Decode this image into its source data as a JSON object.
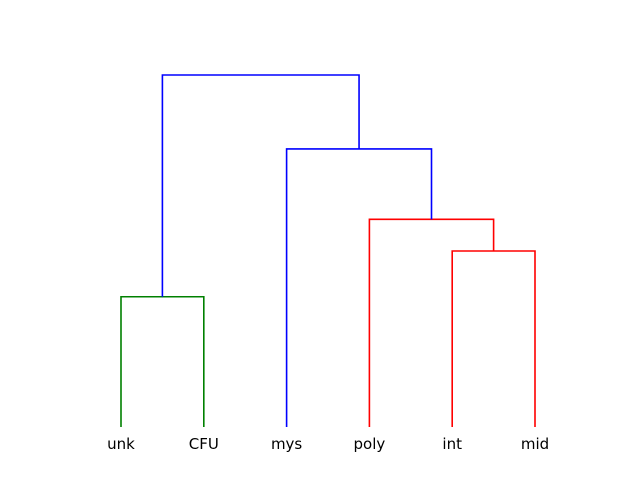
{
  "dendrogram": {
    "leaves": [
      "unk",
      "CFU",
      "poly",
      "int",
      "mys",
      "mid"
    ],
    "merges": [
      {
        "left": "leaf:3",
        "right": "leaf:5",
        "height": 0.5,
        "color": "#ff0000"
      },
      {
        "left": "leaf:2",
        "right": "merge:0",
        "height": 0.59,
        "color": "#ff0000"
      },
      {
        "left": "leaf:4",
        "right": "merge:1",
        "height": 0.79,
        "color": "#0000ff"
      },
      {
        "left": "leaf:0",
        "right": "leaf:1",
        "height": 0.37,
        "color": "#008000"
      },
      {
        "left": "merge:3",
        "right": "merge:2",
        "height": 1.0,
        "color": "#0000ff"
      }
    ],
    "leaf_order": [
      0,
      1,
      4,
      2,
      3,
      5
    ]
  }
}
